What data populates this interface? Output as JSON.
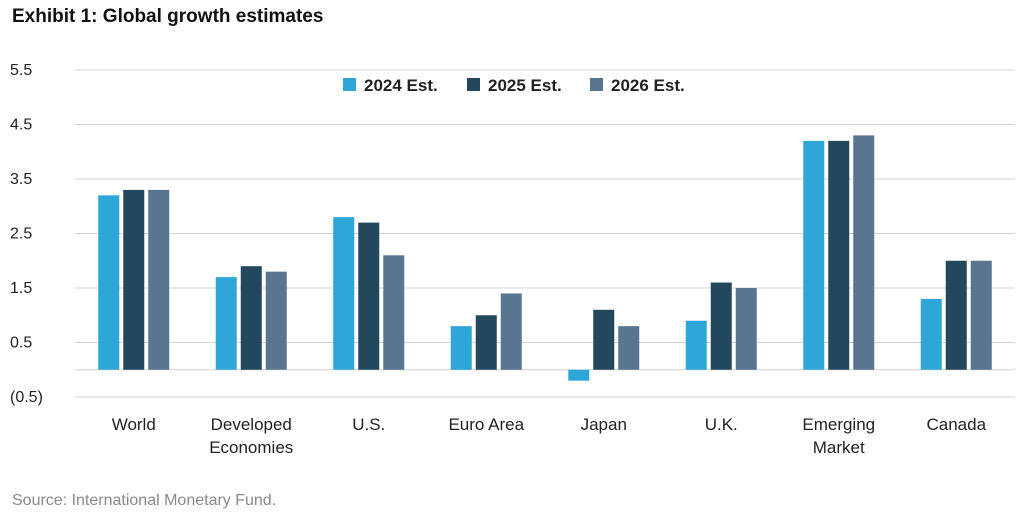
{
  "title": "Exhibit 1: Global growth estimates",
  "source": "Source: International Monetary Fund.",
  "colors": {
    "s2024": "#2ea6d8",
    "s2025": "#23475c",
    "s2026": "#5a7590",
    "grid": "#d4d4d4"
  },
  "chart_data": {
    "type": "bar",
    "title": "Exhibit 1: Global growth estimates",
    "xlabel": "",
    "ylabel": "",
    "ylim": [
      -0.5,
      5.5
    ],
    "yticks": [
      5.5,
      4.5,
      3.5,
      2.5,
      1.5,
      0.5,
      -0.5
    ],
    "ytick_labels": [
      "5.5",
      "4.5",
      "3.5",
      "2.5",
      "1.5",
      "0.5",
      "(0.5)"
    ],
    "grid": true,
    "legend_position": "top-center",
    "categories": [
      [
        "World"
      ],
      [
        "Developed",
        "Economies"
      ],
      [
        "U.S."
      ],
      [
        "Euro Area"
      ],
      [
        "Japan"
      ],
      [
        "U.K."
      ],
      [
        "Emerging",
        "Market"
      ],
      [
        "Canada"
      ]
    ],
    "series": [
      {
        "name": "2024 Est.",
        "values": [
          3.2,
          1.7,
          2.8,
          0.8,
          -0.2,
          0.9,
          4.2,
          1.3
        ]
      },
      {
        "name": "2025 Est.",
        "values": [
          3.3,
          1.9,
          2.7,
          1.0,
          1.1,
          1.6,
          4.2,
          2.0
        ]
      },
      {
        "name": "2026 Est.",
        "values": [
          3.3,
          1.8,
          2.1,
          1.4,
          0.8,
          1.5,
          4.3,
          2.0
        ]
      }
    ]
  }
}
